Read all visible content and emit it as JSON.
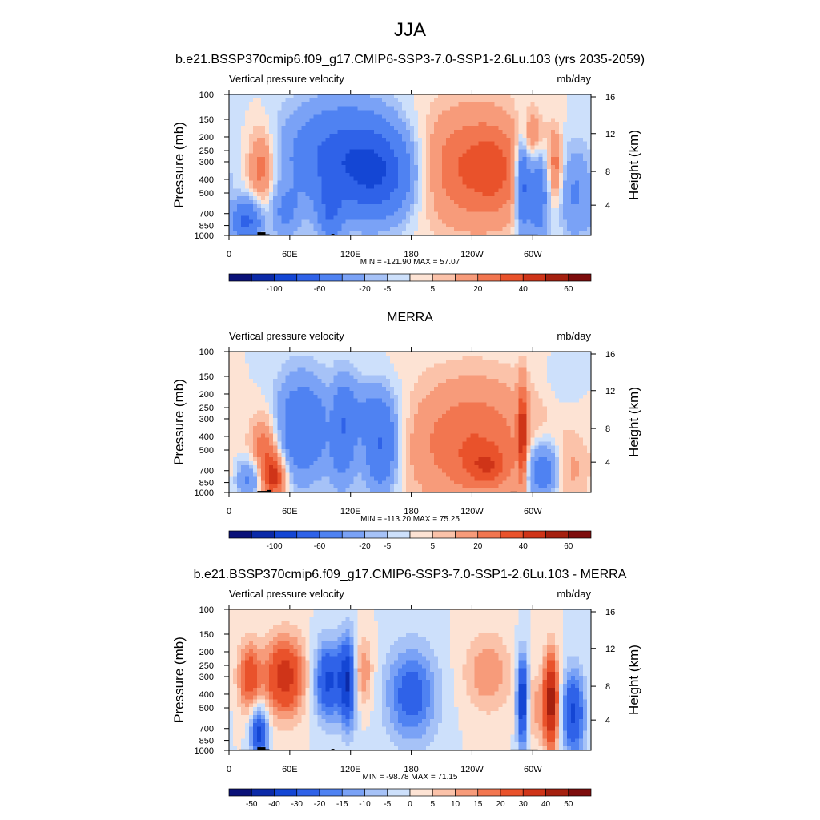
{
  "figure": {
    "title": "JJA"
  },
  "chart_data": [
    {
      "type": "heatmap",
      "title": "b.e21.BSSP370cmip6.f09_g17.CMIP6-SSP3-7.0-SSP1-2.6Lu.103 (yrs 2035-2059)",
      "subtitle_left": "Vertical pressure velocity",
      "subtitle_right": "mb/day",
      "ylabel": "Pressure (mb)",
      "ylabel_right": "Height (km)",
      "x_ticks": [
        "0",
        "60E",
        "120E",
        "180",
        "120W",
        "60W"
      ],
      "y_ticks": [
        "100",
        "150",
        "200",
        "250",
        "300",
        "400",
        "500",
        "700",
        "850",
        "1000"
      ],
      "y_right_ticks": [
        "16",
        "12",
        "8",
        "4"
      ],
      "stats": "MIN = -121.90  MAX =  57.07",
      "colorbar_labels": [
        "-100",
        "-60",
        "-20",
        "-5",
        "5",
        "20",
        "40",
        "60"
      ]
    },
    {
      "type": "heatmap",
      "title": "MERRA",
      "subtitle_left": "Vertical pressure velocity",
      "subtitle_right": "mb/day",
      "ylabel": "Pressure (mb)",
      "ylabel_right": "Height (km)",
      "x_ticks": [
        "0",
        "60E",
        "120E",
        "180",
        "120W",
        "60W"
      ],
      "y_ticks": [
        "100",
        "150",
        "200",
        "250",
        "300",
        "400",
        "500",
        "700",
        "850",
        "1000"
      ],
      "y_right_ticks": [
        "16",
        "12",
        "8",
        "4"
      ],
      "stats": "MIN = -113.20  MAX =  75.25",
      "colorbar_labels": [
        "-100",
        "-60",
        "-20",
        "-5",
        "5",
        "20",
        "40",
        "60"
      ]
    },
    {
      "type": "heatmap",
      "title": "b.e21.BSSP370cmip6.f09_g17.CMIP6-SSP3-7.0-SSP1-2.6Lu.103 - MERRA",
      "subtitle_left": "Vertical pressure velocity",
      "subtitle_right": "mb/day",
      "ylabel": "Pressure (mb)",
      "ylabel_right": "Height (km)",
      "x_ticks": [
        "0",
        "60E",
        "120E",
        "180",
        "120W",
        "60W"
      ],
      "y_ticks": [
        "100",
        "150",
        "200",
        "250",
        "300",
        "400",
        "500",
        "700",
        "850",
        "1000"
      ],
      "y_right_ticks": [
        "16",
        "12",
        "8",
        "4"
      ],
      "stats": "MIN = -98.78  MAX =  71.15",
      "colorbar_labels": [
        "-50",
        "-40",
        "-30",
        "-20",
        "-15",
        "-10",
        "-5",
        "0",
        "5",
        "10",
        "15",
        "20",
        "30",
        "40",
        "50"
      ]
    }
  ],
  "colormaps": {
    "full": [
      "#0a1178",
      "#0b2aa8",
      "#1446d4",
      "#2f62e8",
      "#4f82f2",
      "#7aa2f6",
      "#a6c2f7",
      "#cde0fb",
      "#fde3d4",
      "#fbc2a9",
      "#f79b7a",
      "#f27650",
      "#e9522b",
      "#cf3418",
      "#a5200f",
      "#7d0c0c"
    ],
    "diff": [
      "#0a1178",
      "#0b2aa8",
      "#1446d4",
      "#2f62e8",
      "#4f82f2",
      "#7aa2f6",
      "#a6c2f7",
      "#cde0fb",
      "#fde3d4",
      "#fbc2a9",
      "#f79b7a",
      "#f27650",
      "#e9522b",
      "#cf3418",
      "#a5200f",
      "#7d0c0c"
    ]
  }
}
